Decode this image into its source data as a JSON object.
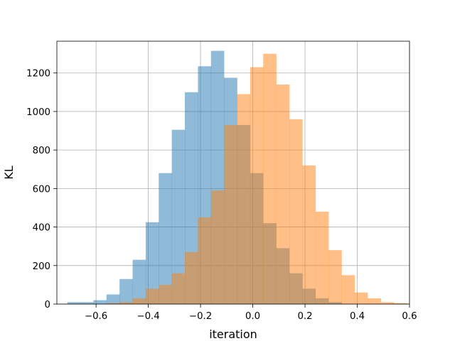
{
  "chart_data": {
    "type": "bar",
    "subtype": "histogram-overlay",
    "title": "",
    "xlabel": "iteration",
    "ylabel": "KL",
    "xlim": [
      -0.75,
      0.6
    ],
    "ylim": [
      0,
      1365
    ],
    "grid": true,
    "x_ticks": [
      -0.6,
      -0.4,
      -0.2,
      0.0,
      0.2,
      0.4,
      0.6
    ],
    "x_tick_labels": [
      "−0.6",
      "−0.4",
      "−0.2",
      "0.0",
      "0.2",
      "0.4",
      "0.6"
    ],
    "y_ticks": [
      0,
      200,
      400,
      600,
      800,
      1000,
      1200
    ],
    "y_tick_labels": [
      "0",
      "200",
      "400",
      "600",
      "800",
      "1000",
      "1200"
    ],
    "series": [
      {
        "color": "#1f77b4",
        "opacity": 0.5,
        "bins": [
          {
            "x0": -0.71,
            "x1": -0.66,
            "count": 10
          },
          {
            "x0": -0.66,
            "x1": -0.61,
            "count": 10
          },
          {
            "x0": -0.61,
            "x1": -0.56,
            "count": 20
          },
          {
            "x0": -0.56,
            "x1": -0.51,
            "count": 50
          },
          {
            "x0": -0.51,
            "x1": -0.46,
            "count": 130
          },
          {
            "x0": -0.46,
            "x1": -0.41,
            "count": 230
          },
          {
            "x0": -0.41,
            "x1": -0.36,
            "count": 425
          },
          {
            "x0": -0.36,
            "x1": -0.31,
            "count": 680
          },
          {
            "x0": -0.31,
            "x1": -0.26,
            "count": 905
          },
          {
            "x0": -0.26,
            "x1": -0.21,
            "count": 1100
          },
          {
            "x0": -0.21,
            "x1": -0.16,
            "count": 1235
          },
          {
            "x0": -0.16,
            "x1": -0.11,
            "count": 1315
          },
          {
            "x0": -0.11,
            "x1": -0.06,
            "count": 1175
          },
          {
            "x0": -0.06,
            "x1": -0.01,
            "count": 930
          },
          {
            "x0": -0.01,
            "x1": 0.04,
            "count": 680
          },
          {
            "x0": 0.04,
            "x1": 0.09,
            "count": 420
          },
          {
            "x0": 0.09,
            "x1": 0.14,
            "count": 290
          },
          {
            "x0": 0.14,
            "x1": 0.19,
            "count": 160
          },
          {
            "x0": 0.19,
            "x1": 0.24,
            "count": 80
          },
          {
            "x0": 0.24,
            "x1": 0.29,
            "count": 30
          },
          {
            "x0": 0.29,
            "x1": 0.34,
            "count": 10
          }
        ]
      },
      {
        "color": "#ff7f0e",
        "opacity": 0.5,
        "bins": [
          {
            "x0": -0.56,
            "x1": -0.51,
            "count": 5
          },
          {
            "x0": -0.51,
            "x1": -0.46,
            "count": 10
          },
          {
            "x0": -0.46,
            "x1": -0.41,
            "count": 30
          },
          {
            "x0": -0.41,
            "x1": -0.36,
            "count": 80
          },
          {
            "x0": -0.36,
            "x1": -0.31,
            "count": 100
          },
          {
            "x0": -0.31,
            "x1": -0.26,
            "count": 160
          },
          {
            "x0": -0.26,
            "x1": -0.21,
            "count": 270
          },
          {
            "x0": -0.21,
            "x1": -0.16,
            "count": 450
          },
          {
            "x0": -0.16,
            "x1": -0.11,
            "count": 590
          },
          {
            "x0": -0.11,
            "x1": -0.06,
            "count": 930
          },
          {
            "x0": -0.06,
            "x1": -0.01,
            "count": 1090
          },
          {
            "x0": -0.01,
            "x1": 0.04,
            "count": 1230
          },
          {
            "x0": 0.04,
            "x1": 0.09,
            "count": 1300
          },
          {
            "x0": 0.09,
            "x1": 0.14,
            "count": 1140
          },
          {
            "x0": 0.14,
            "x1": 0.19,
            "count": 960
          },
          {
            "x0": 0.19,
            "x1": 0.24,
            "count": 720
          },
          {
            "x0": 0.24,
            "x1": 0.29,
            "count": 480
          },
          {
            "x0": 0.29,
            "x1": 0.34,
            "count": 280
          },
          {
            "x0": 0.34,
            "x1": 0.39,
            "count": 150
          },
          {
            "x0": 0.39,
            "x1": 0.44,
            "count": 60
          },
          {
            "x0": 0.44,
            "x1": 0.49,
            "count": 30
          },
          {
            "x0": 0.49,
            "x1": 0.54,
            "count": 10
          },
          {
            "x0": 0.54,
            "x1": 0.59,
            "count": 5
          }
        ]
      }
    ]
  }
}
